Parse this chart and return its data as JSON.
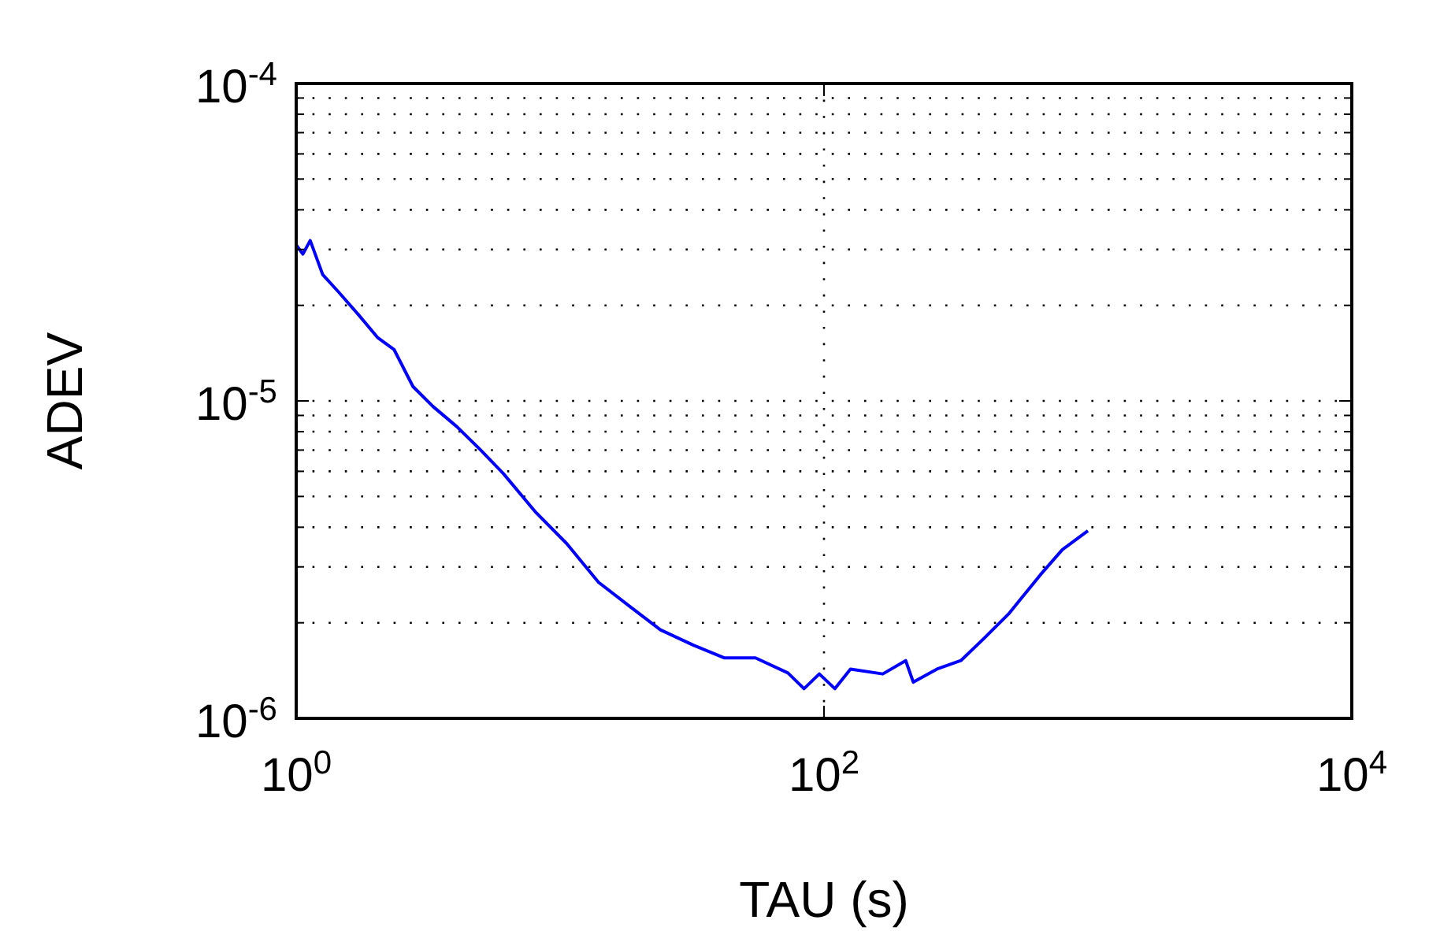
{
  "chart_data": {
    "type": "line",
    "xlabel": "TAU (s)",
    "ylabel": "ADEV",
    "log": "xy",
    "grid": true,
    "line_style": "solid",
    "marker": "none",
    "xlim": [
      1,
      10000
    ],
    "ylim": [
      1e-06,
      0.0001
    ],
    "xticks": [
      {
        "value": 1,
        "label": "10$^{0}$"
      },
      {
        "value": 100,
        "label": "10$^{2}$"
      },
      {
        "value": 10000,
        "label": "10$^{4}$"
      }
    ],
    "yticks": [
      {
        "value": 1e-06,
        "label": "10$^{-6}$"
      },
      {
        "value": 2e-06,
        "label": null
      },
      {
        "value": 3e-06,
        "label": null
      },
      {
        "value": 4e-06,
        "label": null
      },
      {
        "value": 5e-06,
        "label": null
      },
      {
        "value": 6e-06,
        "label": null
      },
      {
        "value": 7e-06,
        "label": null
      },
      {
        "value": 8e-06,
        "label": null
      },
      {
        "value": 9e-06,
        "label": null
      },
      {
        "value": 1e-05,
        "label": "10$^{-5}$"
      },
      {
        "value": 2e-05,
        "label": null
      },
      {
        "value": 3e-05,
        "label": null
      },
      {
        "value": 4e-05,
        "label": null
      },
      {
        "value": 5e-05,
        "label": null
      },
      {
        "value": 6e-05,
        "label": null
      },
      {
        "value": 7e-05,
        "label": null
      },
      {
        "value": 8e-05,
        "label": null
      },
      {
        "value": 9e-05,
        "label": null
      },
      {
        "value": 0.0001,
        "label": "10$^{-4}$"
      }
    ],
    "x": [
      1,
      1.06,
      1.13,
      1.26,
      1.45,
      1.73,
      2.04,
      2.35,
      2.77,
      3.3,
      4.06,
      5.0,
      6.1,
      8.1,
      10.6,
      14,
      18.4,
      24,
      32,
      42,
      55,
      73,
      84,
      96,
      110,
      126,
      167,
      204,
      218,
      268,
      330,
      405,
      500,
      660,
      800,
      1000
    ],
    "series": [
      {
        "color": "#0000ff",
        "values": [
          3.1e-05,
          2.9e-05,
          3.2e-05,
          2.5e-05,
          2.2e-05,
          1.86e-05,
          1.58e-05,
          1.45e-05,
          1.11e-05,
          9.6e-06,
          8.3e-06,
          7e-06,
          5.9e-06,
          4.45e-06,
          3.55e-06,
          2.68e-06,
          2.25e-06,
          1.9e-06,
          1.7e-06,
          1.55e-06,
          1.55e-06,
          1.39e-06,
          1.24e-06,
          1.38e-06,
          1.24e-06,
          1.43e-06,
          1.38e-06,
          1.52e-06,
          1.3e-06,
          1.43e-06,
          1.52e-06,
          1.79e-06,
          2.13e-06,
          2.83e-06,
          3.4e-06,
          3.9e-06
        ]
      }
    ]
  }
}
